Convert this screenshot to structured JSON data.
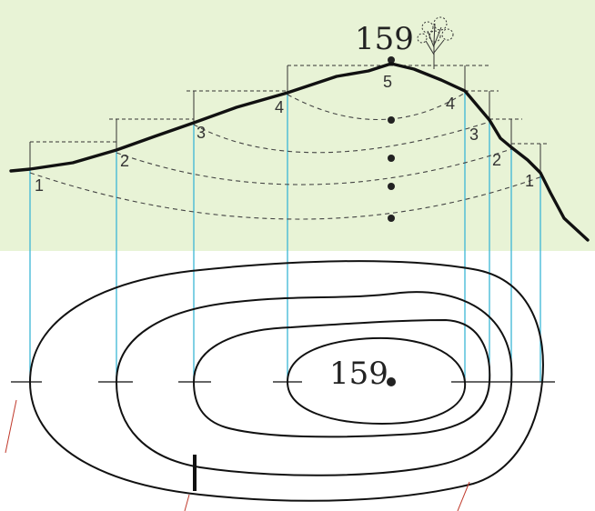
{
  "summit": {
    "elevation_label": "159",
    "map_label": "159",
    "tree_icon": "tree-icon"
  },
  "profile": {
    "left_levels": [
      "1",
      "2",
      "3",
      "4"
    ],
    "right_levels": [
      "4",
      "3",
      "2",
      "1"
    ],
    "top_level": "5"
  },
  "colors": {
    "background_band": "#e8f3d6",
    "projection_lines": "#3bb6d6",
    "ink": "#111111",
    "dashed": "#444444",
    "slope_marks": "#c0392b"
  }
}
